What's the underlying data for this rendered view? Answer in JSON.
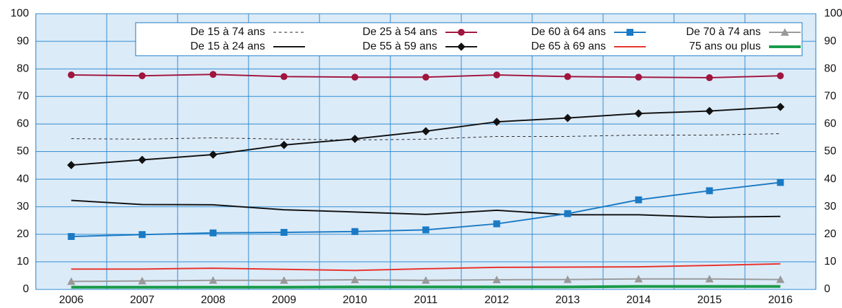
{
  "chart_data": {
    "type": "line",
    "categories": [
      "2006",
      "2007",
      "2008",
      "2009",
      "2010",
      "2011",
      "2012",
      "2013",
      "2014",
      "2015",
      "2016"
    ],
    "ylim": [
      0,
      100
    ],
    "yticks": [
      0,
      10,
      20,
      30,
      40,
      50,
      60,
      70,
      80,
      90,
      100
    ],
    "grid": true,
    "series": [
      {
        "name": "De 15 à 74 ans",
        "color": "#222222",
        "dash": true,
        "marker": "none",
        "values": [
          54.7,
          54.5,
          55,
          54.5,
          54.2,
          54.5,
          55.5,
          55.5,
          56,
          56,
          56.5
        ]
      },
      {
        "name": "De 15 à 24 ans",
        "color": "#111111",
        "marker": "none",
        "values": [
          32.3,
          30.8,
          30.7,
          28.9,
          28.1,
          27.2,
          28.7,
          27.1,
          27.1,
          26.2,
          26.5
        ]
      },
      {
        "name": "De 25 à 54 ans",
        "color": "#a0153e",
        "marker": "circle",
        "values": [
          77.8,
          77.5,
          78,
          77.2,
          77,
          77,
          77.8,
          77.2,
          77,
          76.8,
          77.5
        ]
      },
      {
        "name": "De 55 à 59 ans",
        "color": "#111111",
        "marker": "diamond",
        "values": [
          45.1,
          47,
          48.9,
          52.4,
          54.6,
          57.4,
          60.8,
          62.2,
          63.8,
          64.7,
          66.2
        ]
      },
      {
        "name": "De 60 à 64 ans",
        "color": "#1a7ac4",
        "marker": "square",
        "values": [
          19.2,
          19.9,
          20.5,
          20.7,
          21,
          21.6,
          23.8,
          27.5,
          32.5,
          35.8,
          38.8
        ]
      },
      {
        "name": "De 65 à 69 ans",
        "color": "#e8302a",
        "marker": "none",
        "values": [
          7.4,
          7.4,
          7.7,
          7.3,
          6.9,
          7.5,
          8,
          8.1,
          8.2,
          8.7,
          9.3
        ]
      },
      {
        "name": "De 70 à 74 ans",
        "color": "#999999",
        "marker": "triangle",
        "values": [
          2.9,
          3.1,
          3.3,
          3.3,
          3.5,
          3.3,
          3.5,
          3.6,
          3.8,
          3.8,
          3.6
        ]
      },
      {
        "name": "75 ans ou plus",
        "color": "#1a9a4a",
        "thick": true,
        "marker": "none",
        "values": [
          0.8,
          0.8,
          0.8,
          0.8,
          0.9,
          0.9,
          0.9,
          0.9,
          1.1,
          1.1,
          1.1
        ]
      }
    ]
  }
}
